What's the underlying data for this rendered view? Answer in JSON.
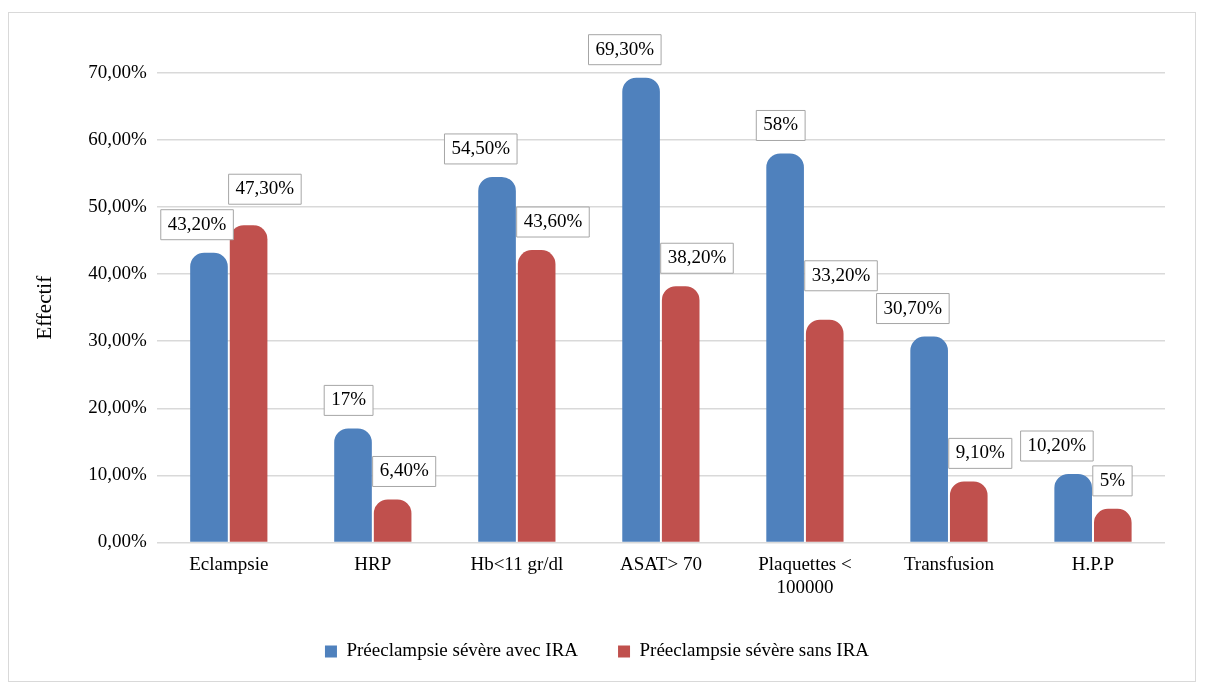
{
  "chart_data": {
    "type": "bar",
    "ylabel": "Effectif",
    "categories": [
      "Eclampsie",
      "HRP",
      "Hb<11 gr/dl",
      "ASAT> 70",
      "Plaquettes < 100000",
      "Transfusion",
      "H.P.P"
    ],
    "series": [
      {
        "name": "Préeclampsie sévère avec IRA",
        "color": "#4f81bd",
        "values": [
          43.2,
          17,
          54.5,
          69.3,
          58,
          30.7,
          10.2
        ],
        "value_labels": [
          "43,20%",
          "17%",
          "54,50%",
          "69,30%",
          "58%",
          "30,70%",
          "10,20%"
        ]
      },
      {
        "name": "Préeclampsie sévère sans IRA",
        "color": "#c0504d",
        "values": [
          47.3,
          6.4,
          43.6,
          38.2,
          33.2,
          9.1,
          5
        ],
        "value_labels": [
          "47,30%",
          "6,40%",
          "43,60%",
          "38,20%",
          "33,20%",
          "9,10%",
          "5%"
        ]
      }
    ],
    "ylim": [
      0,
      70
    ],
    "yticks": [
      {
        "value": 0,
        "label": "0,00%"
      },
      {
        "value": 10,
        "label": "10,00%"
      },
      {
        "value": 20,
        "label": "20,00%"
      },
      {
        "value": 30,
        "label": "30,00%"
      },
      {
        "value": 40,
        "label": "40,00%"
      },
      {
        "value": 50,
        "label": "50,00%"
      },
      {
        "value": 60,
        "label": "60,00%"
      },
      {
        "value": 70,
        "label": "70,00%"
      }
    ],
    "grid": "y",
    "legend": "bottom"
  }
}
